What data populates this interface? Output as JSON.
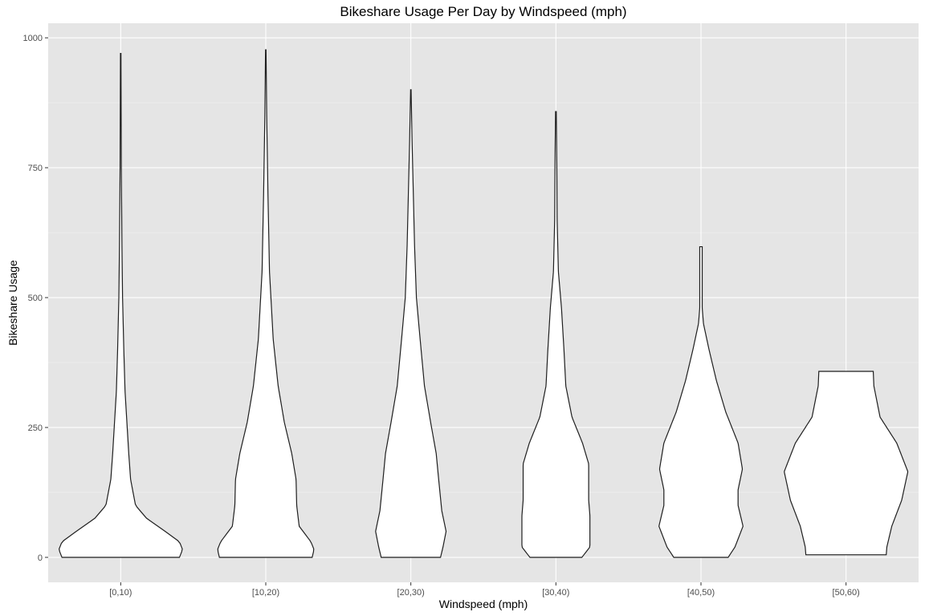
{
  "chart_data": {
    "type": "violin",
    "title": "Bikeshare Usage Per Day by Windspeed (mph)",
    "xlabel": "Windspeed (mph)",
    "ylabel": "Bikeshare Usage",
    "categories": [
      "[0,10)",
      "[10,20)",
      "[20,30)",
      "[30,40)",
      "[40,50)",
      "[50,60)"
    ],
    "y_ticks": [
      0,
      250,
      500,
      750,
      1000
    ],
    "ylim": [
      -48,
      1028
    ],
    "grid": true,
    "background_color": "#e5e5e5",
    "violin_fill": "#ffffff",
    "violin_stroke": "#1f1f1f",
    "violins": [
      {
        "category": "[0,10)",
        "min": 0,
        "max": 970,
        "profile": [
          [
            0,
            0.95
          ],
          [
            15,
            1.0
          ],
          [
            30,
            0.95
          ],
          [
            50,
            0.72
          ],
          [
            75,
            0.42
          ],
          [
            100,
            0.24
          ],
          [
            150,
            0.16
          ],
          [
            200,
            0.13
          ],
          [
            260,
            0.1
          ],
          [
            320,
            0.07
          ],
          [
            400,
            0.05
          ],
          [
            500,
            0.03
          ],
          [
            600,
            0.02
          ],
          [
            750,
            0.01
          ],
          [
            900,
            0.006
          ],
          [
            970,
            0.004
          ]
        ]
      },
      {
        "category": "[10,20)",
        "min": 0,
        "max": 977,
        "profile": [
          [
            0,
            0.75
          ],
          [
            15,
            0.78
          ],
          [
            30,
            0.73
          ],
          [
            60,
            0.54
          ],
          [
            100,
            0.5
          ],
          [
            150,
            0.49
          ],
          [
            200,
            0.42
          ],
          [
            260,
            0.3
          ],
          [
            330,
            0.2
          ],
          [
            420,
            0.12
          ],
          [
            550,
            0.06
          ],
          [
            700,
            0.035
          ],
          [
            850,
            0.015
          ],
          [
            977,
            0.004
          ]
        ]
      },
      {
        "category": "[20,30)",
        "min": 0,
        "max": 900,
        "profile": [
          [
            0,
            0.48
          ],
          [
            20,
            0.52
          ],
          [
            50,
            0.57
          ],
          [
            90,
            0.5
          ],
          [
            150,
            0.45
          ],
          [
            200,
            0.41
          ],
          [
            260,
            0.32
          ],
          [
            330,
            0.22
          ],
          [
            420,
            0.15
          ],
          [
            500,
            0.09
          ],
          [
            600,
            0.06
          ],
          [
            700,
            0.04
          ],
          [
            800,
            0.02
          ],
          [
            900,
            0.004
          ]
        ]
      },
      {
        "category": "[30,40)",
        "min": 0,
        "max": 858,
        "profile": [
          [
            0,
            0.42
          ],
          [
            20,
            0.55
          ],
          [
            50,
            0.55
          ],
          [
            80,
            0.55
          ],
          [
            110,
            0.53
          ],
          [
            150,
            0.53
          ],
          [
            180,
            0.53
          ],
          [
            220,
            0.43
          ],
          [
            270,
            0.26
          ],
          [
            330,
            0.16
          ],
          [
            400,
            0.13
          ],
          [
            480,
            0.09
          ],
          [
            550,
            0.04
          ],
          [
            650,
            0.02
          ],
          [
            750,
            0.015
          ],
          [
            858,
            0.006
          ]
        ]
      },
      {
        "category": "[40,50)",
        "min": 0,
        "max": 598,
        "profile": [
          [
            0,
            0.44
          ],
          [
            20,
            0.55
          ],
          [
            60,
            0.68
          ],
          [
            100,
            0.6
          ],
          [
            130,
            0.6
          ],
          [
            170,
            0.67
          ],
          [
            220,
            0.6
          ],
          [
            280,
            0.4
          ],
          [
            340,
            0.25
          ],
          [
            400,
            0.13
          ],
          [
            450,
            0.04
          ],
          [
            480,
            0.02
          ],
          [
            520,
            0.02
          ],
          [
            598,
            0.02
          ]
        ]
      },
      {
        "category": "[50,60)",
        "min": 5,
        "max": 358,
        "profile": [
          [
            5,
            0.65
          ],
          [
            20,
            0.66
          ],
          [
            60,
            0.74
          ],
          [
            110,
            0.9
          ],
          [
            165,
            1.0
          ],
          [
            220,
            0.82
          ],
          [
            270,
            0.55
          ],
          [
            330,
            0.45
          ],
          [
            358,
            0.44
          ]
        ]
      }
    ]
  }
}
